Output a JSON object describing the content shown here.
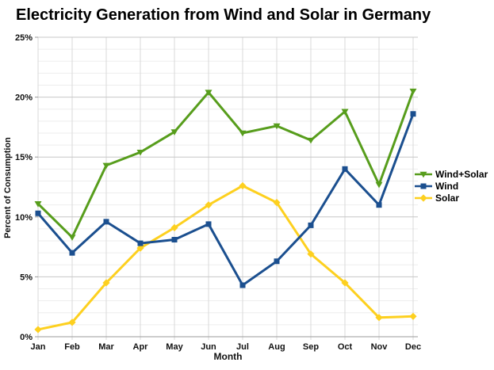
{
  "chart_data": {
    "type": "line",
    "title": "Electricity Generation from Wind and Solar in Germany",
    "xlabel": "Month",
    "ylabel": "Percent of Consumption",
    "ylim": [
      0,
      25
    ],
    "ytick_interval": 5,
    "minor_grid_interval": 1,
    "ytick_labels": [
      "0%",
      "5%",
      "10%",
      "15%",
      "20%",
      "25%"
    ],
    "grid": true,
    "legend_position": "right",
    "categories": [
      "Jan",
      "Feb",
      "Mar",
      "Apr",
      "May",
      "Jun",
      "Jul",
      "Aug",
      "Sep",
      "Oct",
      "Nov",
      "Dec"
    ],
    "series": [
      {
        "name": "Wind+Solar",
        "color": "#579d1c",
        "marker": "triangle-down",
        "values": [
          11.1,
          8.3,
          14.3,
          15.4,
          17.1,
          20.4,
          17.0,
          17.6,
          16.4,
          18.8,
          12.7,
          20.5
        ]
      },
      {
        "name": "Wind",
        "color": "#1b4f8f",
        "marker": "square",
        "values": [
          10.3,
          7.0,
          9.6,
          7.8,
          8.1,
          9.4,
          4.3,
          6.3,
          9.3,
          14.0,
          11.0,
          18.6
        ]
      },
      {
        "name": "Solar",
        "color": "#fdd01f",
        "marker": "diamond",
        "values": [
          0.6,
          1.2,
          4.5,
          7.4,
          9.1,
          11.0,
          12.6,
          11.2,
          6.9,
          4.5,
          1.6,
          1.7
        ]
      }
    ],
    "grid_colors": {
      "minor": "#ededed",
      "major": "#c7c7c7",
      "vertical": "#d9d9d9",
      "axis": "#9b9b9b",
      "tick_label": "#111111"
    }
  }
}
